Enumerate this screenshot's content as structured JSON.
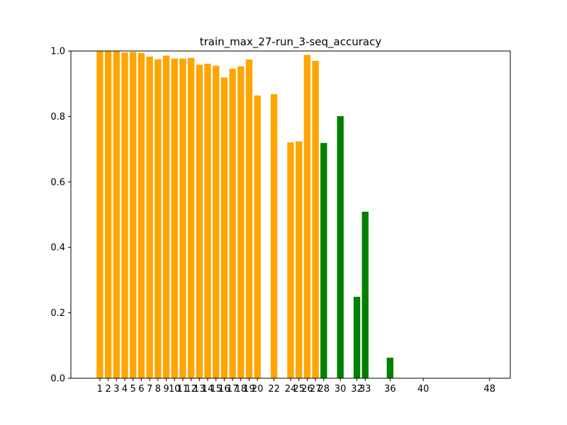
{
  "chart_data": {
    "type": "bar",
    "title": "train_max_27-run_3-seq_accuracy",
    "xlabel": "",
    "ylabel": "",
    "ylim": [
      0,
      1.0
    ],
    "xlim": [
      -2.5,
      50.5
    ],
    "grid": false,
    "legend": "none",
    "x_ticks": [
      1,
      2,
      3,
      4,
      5,
      6,
      7,
      8,
      9,
      10,
      11,
      12,
      13,
      14,
      15,
      16,
      17,
      18,
      19,
      20,
      22,
      24,
      25,
      26,
      27,
      28,
      30,
      32,
      33,
      36,
      40,
      48
    ],
    "y_ticks": [
      0.0,
      0.2,
      0.4,
      0.6,
      0.8,
      1.0
    ],
    "y_tick_labels": [
      "0.0",
      "0.2",
      "0.4",
      "0.6",
      "0.8",
      "1.0"
    ],
    "colors": {
      "train": "#ffa500",
      "extrapolation": "#008000"
    },
    "bars": [
      {
        "x": 1,
        "value": 1.0,
        "color": "#ffa500"
      },
      {
        "x": 2,
        "value": 1.0,
        "color": "#ffa500"
      },
      {
        "x": 3,
        "value": 1.0,
        "color": "#ffa500"
      },
      {
        "x": 4,
        "value": 0.995,
        "color": "#ffa500"
      },
      {
        "x": 5,
        "value": 0.997,
        "color": "#ffa500"
      },
      {
        "x": 6,
        "value": 0.994,
        "color": "#ffa500"
      },
      {
        "x": 7,
        "value": 0.983,
        "color": "#ffa500"
      },
      {
        "x": 8,
        "value": 0.975,
        "color": "#ffa500"
      },
      {
        "x": 9,
        "value": 0.986,
        "color": "#ffa500"
      },
      {
        "x": 10,
        "value": 0.977,
        "color": "#ffa500"
      },
      {
        "x": 11,
        "value": 0.977,
        "color": "#ffa500"
      },
      {
        "x": 12,
        "value": 0.979,
        "color": "#ffa500"
      },
      {
        "x": 13,
        "value": 0.958,
        "color": "#ffa500"
      },
      {
        "x": 14,
        "value": 0.961,
        "color": "#ffa500"
      },
      {
        "x": 15,
        "value": 0.955,
        "color": "#ffa500"
      },
      {
        "x": 16,
        "value": 0.919,
        "color": "#ffa500"
      },
      {
        "x": 17,
        "value": 0.946,
        "color": "#ffa500"
      },
      {
        "x": 18,
        "value": 0.953,
        "color": "#ffa500"
      },
      {
        "x": 19,
        "value": 0.974,
        "color": "#ffa500"
      },
      {
        "x": 20,
        "value": 0.864,
        "color": "#ffa500"
      },
      {
        "x": 22,
        "value": 0.868,
        "color": "#ffa500"
      },
      {
        "x": 24,
        "value": 0.721,
        "color": "#ffa500"
      },
      {
        "x": 25,
        "value": 0.724,
        "color": "#ffa500"
      },
      {
        "x": 26,
        "value": 0.988,
        "color": "#ffa500"
      },
      {
        "x": 27,
        "value": 0.97,
        "color": "#ffa500"
      },
      {
        "x": 28,
        "value": 0.719,
        "color": "#008000"
      },
      {
        "x": 30,
        "value": 0.801,
        "color": "#008000"
      },
      {
        "x": 32,
        "value": 0.249,
        "color": "#008000"
      },
      {
        "x": 33,
        "value": 0.509,
        "color": "#008000"
      },
      {
        "x": 36,
        "value": 0.063,
        "color": "#008000"
      }
    ]
  }
}
